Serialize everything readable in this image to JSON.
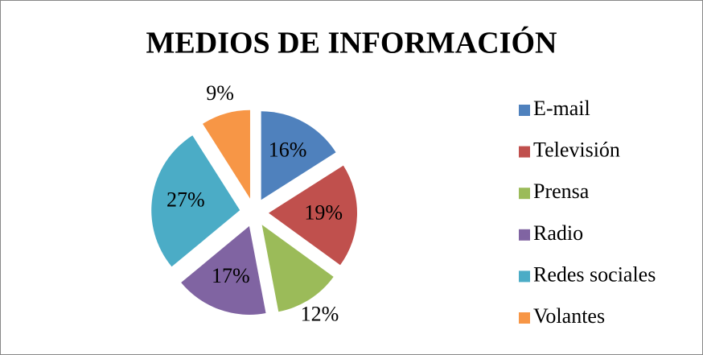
{
  "chart_data": {
    "type": "pie",
    "title": "MEDIOS DE INFORMACIÓN",
    "categories": [
      "E-mail",
      "Televisión",
      "Prensa",
      "Radio",
      "Redes sociales",
      "Volantes"
    ],
    "values": [
      16,
      19,
      12,
      17,
      27,
      9
    ],
    "value_labels": [
      "16%",
      "19%",
      "12%",
      "17%",
      "27%",
      "9%"
    ],
    "colors": [
      "#4f81bd",
      "#c0504d",
      "#9bbb59",
      "#8064a2",
      "#4bacc6",
      "#f79646"
    ],
    "legend": "right"
  }
}
